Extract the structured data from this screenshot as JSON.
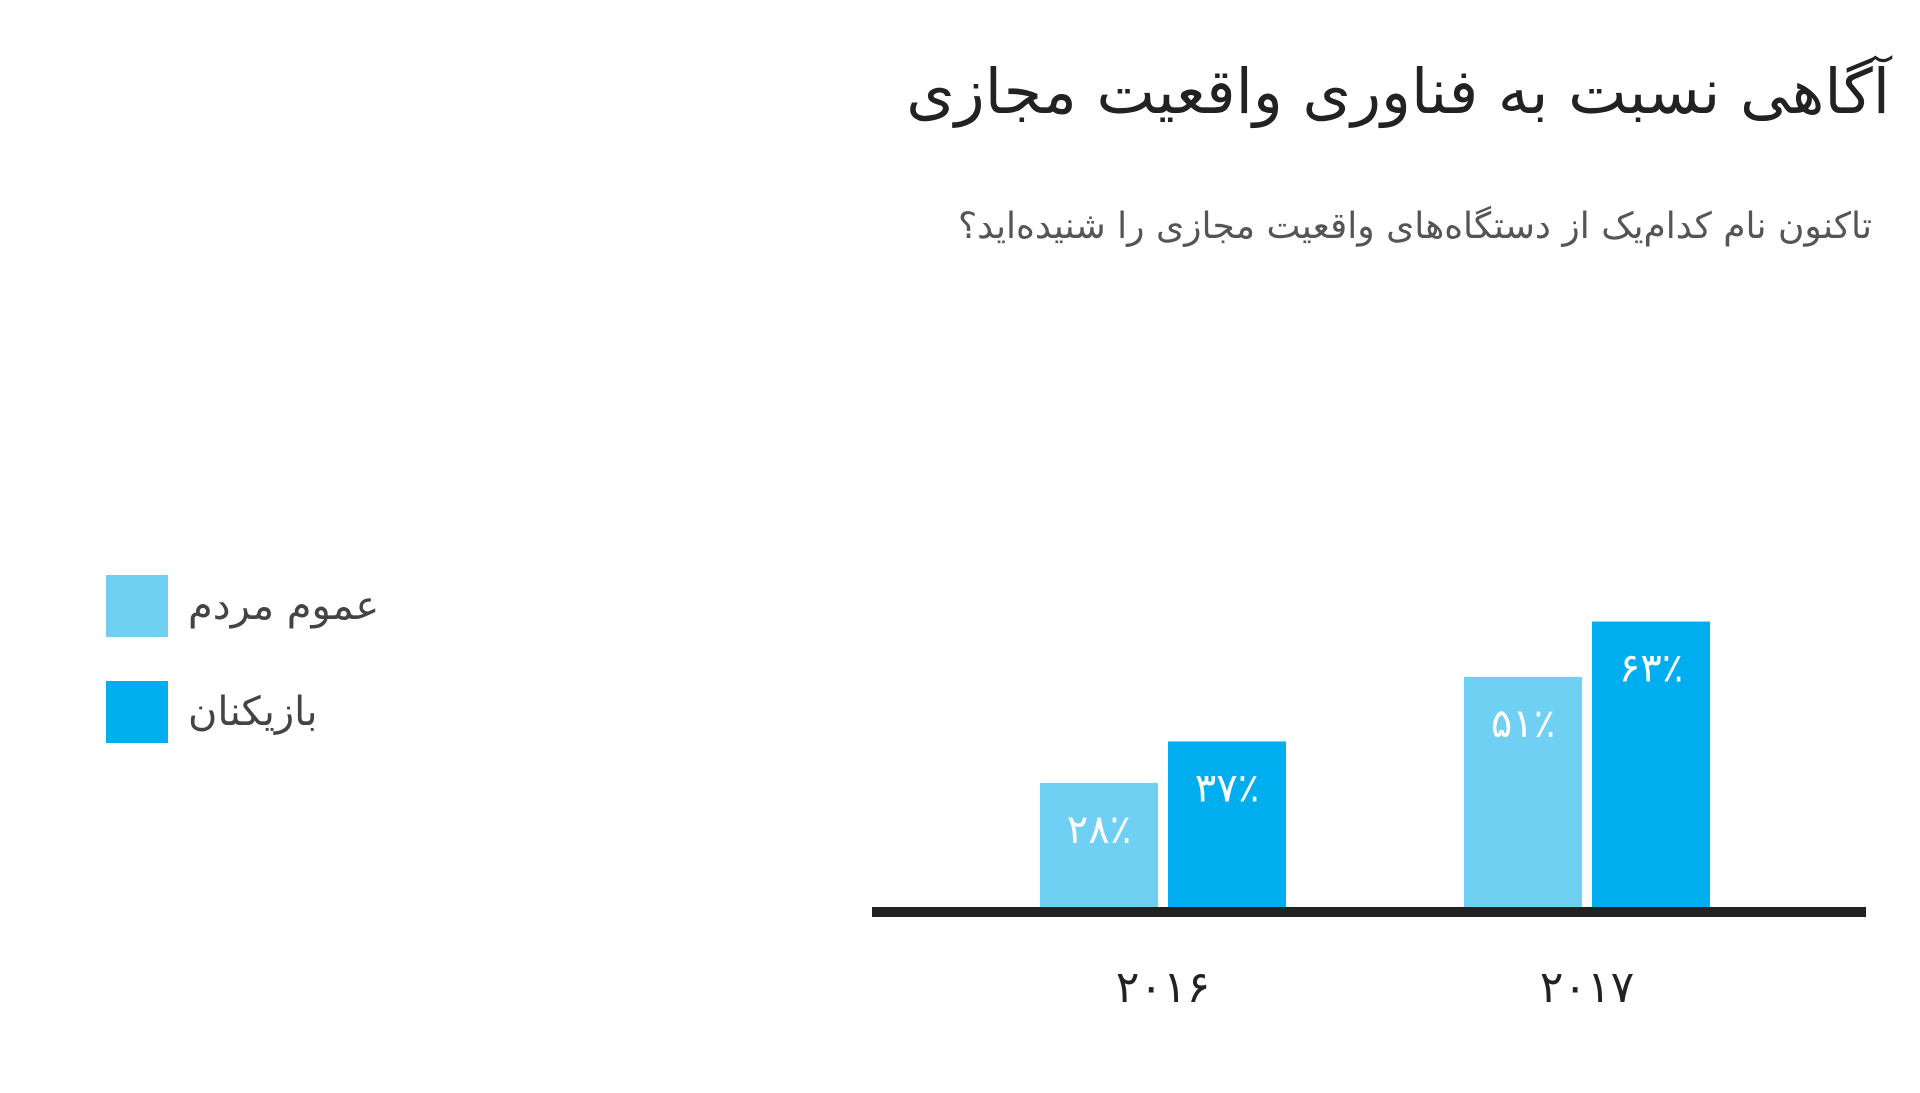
{
  "title": "آگاهی نسبت به فناوری واقعیت مجازی",
  "subtitle": "تاکنون نام کدام‌یک از دستگاه‌های واقعیت مجازی را شنیده‌اید؟",
  "legend": [
    {
      "label": "عموم مردم",
      "color": "#6FD0F3"
    },
    {
      "label": "بازیکنان",
      "color": "#00AEEF"
    }
  ],
  "chart_data": {
    "type": "bar",
    "categories": [
      "۲۰۱۶",
      "۲۰۱۷"
    ],
    "series": [
      {
        "name": "عموم مردم",
        "values": [
          28,
          51
        ],
        "labels": [
          "۲۸٪",
          "۵۱٪"
        ],
        "color": "#6FD0F3"
      },
      {
        "name": "بازیکنان",
        "values": [
          37,
          63
        ],
        "labels": [
          "۳۷٪",
          "۶۳٪"
        ],
        "color": "#00AEEF"
      }
    ],
    "ylim": [
      0,
      100
    ],
    "grid": false,
    "legend_position": "left",
    "baseline_color": "#222222"
  }
}
